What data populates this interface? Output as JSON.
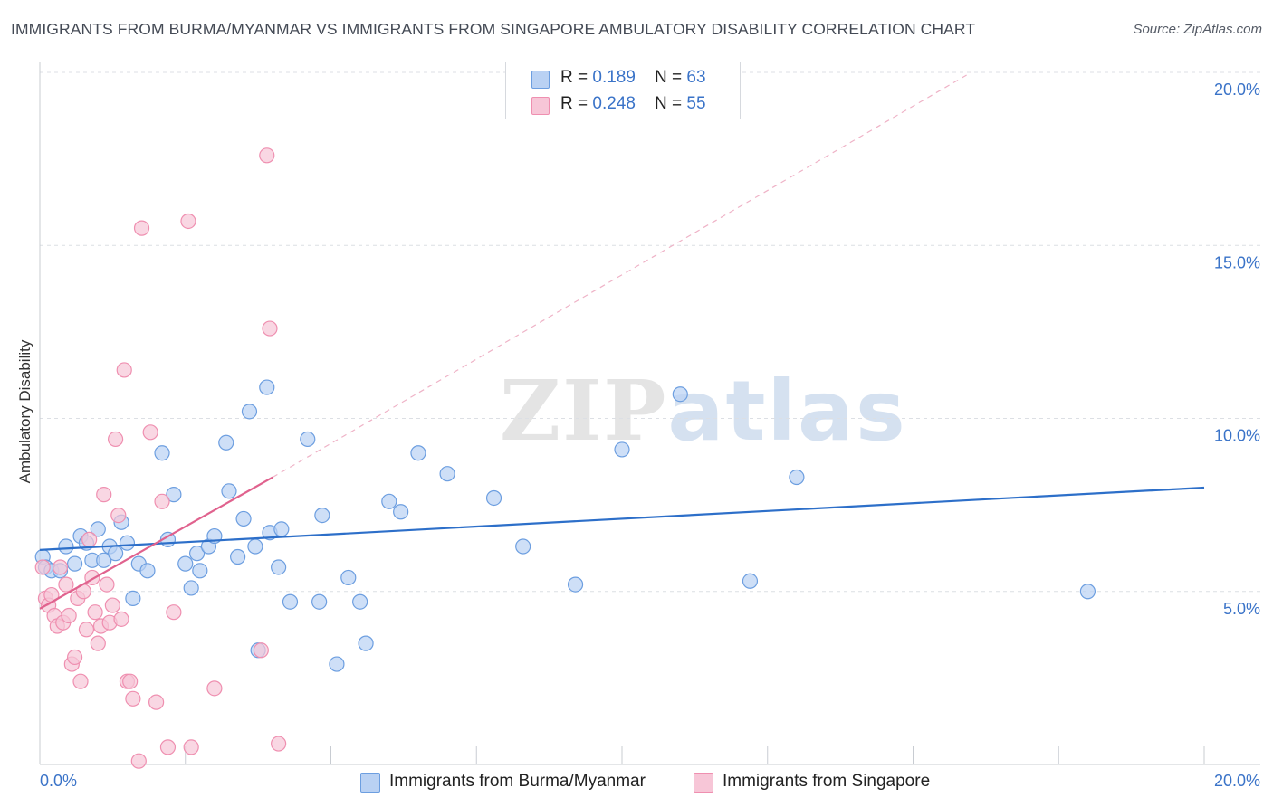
{
  "title": "IMMIGRANTS FROM BURMA/MYANMAR VS IMMIGRANTS FROM SINGAPORE AMBULATORY DISABILITY CORRELATION CHART",
  "source": "Source: ZipAtlas.com",
  "watermark": {
    "zip": "ZIP",
    "atlas": "atlas"
  },
  "legend": {
    "rows": [
      {
        "r_label": "R = ",
        "r_value": "0.189",
        "n_label": "N = ",
        "n_value": "63"
      },
      {
        "r_label": "R = ",
        "r_value": "0.248",
        "n_label": "N = ",
        "n_value": "55"
      }
    ]
  },
  "chart_data": {
    "type": "scatter",
    "ylabel": "Ambulatory Disability",
    "xlim": [
      0,
      20
    ],
    "ylim": [
      0,
      20
    ],
    "x_tick_labels": [
      {
        "value": 0,
        "label": "0.0%"
      },
      {
        "value": 20,
        "label": "20.0%"
      }
    ],
    "y_tick_labels": [
      {
        "value": 5,
        "label": "5.0%"
      },
      {
        "value": 10,
        "label": "10.0%"
      },
      {
        "value": 15,
        "label": "15.0%"
      },
      {
        "value": 20,
        "label": "20.0%"
      }
    ],
    "grid": true,
    "legend_placement": "bottom",
    "series": [
      {
        "name": "Immigrants from Burma/Myanmar",
        "color": "#6c9ee0",
        "fill": "#b9d1f3",
        "line_color": "#2d6fc9",
        "r": 0.189,
        "n": 63,
        "trend": {
          "x": [
            0,
            20
          ],
          "y": [
            6.2,
            8.0
          ]
        },
        "points": [
          [
            0.05,
            6.0
          ],
          [
            0.1,
            5.7
          ],
          [
            0.2,
            5.6
          ],
          [
            0.35,
            5.6
          ],
          [
            0.45,
            6.3
          ],
          [
            0.6,
            5.8
          ],
          [
            0.7,
            6.6
          ],
          [
            0.8,
            6.4
          ],
          [
            0.9,
            5.9
          ],
          [
            1.0,
            6.8
          ],
          [
            1.1,
            5.9
          ],
          [
            1.2,
            6.3
          ],
          [
            1.3,
            6.1
          ],
          [
            1.4,
            7.0
          ],
          [
            1.5,
            6.4
          ],
          [
            1.6,
            4.8
          ],
          [
            1.7,
            5.8
          ],
          [
            1.85,
            5.6
          ],
          [
            2.1,
            9.0
          ],
          [
            2.2,
            6.5
          ],
          [
            2.3,
            7.8
          ],
          [
            2.5,
            5.8
          ],
          [
            2.6,
            5.1
          ],
          [
            2.7,
            6.1
          ],
          [
            2.75,
            5.6
          ],
          [
            2.9,
            6.3
          ],
          [
            3.0,
            6.6
          ],
          [
            3.2,
            9.3
          ],
          [
            3.25,
            7.9
          ],
          [
            3.4,
            6.0
          ],
          [
            3.5,
            7.1
          ],
          [
            3.6,
            10.2
          ],
          [
            3.7,
            6.3
          ],
          [
            3.75,
            3.3
          ],
          [
            3.9,
            10.9
          ],
          [
            3.95,
            6.7
          ],
          [
            4.1,
            5.7
          ],
          [
            4.15,
            6.8
          ],
          [
            4.3,
            4.7
          ],
          [
            4.6,
            9.4
          ],
          [
            4.8,
            4.7
          ],
          [
            4.85,
            7.2
          ],
          [
            5.1,
            2.9
          ],
          [
            5.3,
            5.4
          ],
          [
            5.5,
            4.7
          ],
          [
            5.6,
            3.5
          ],
          [
            6.0,
            7.6
          ],
          [
            6.2,
            7.3
          ],
          [
            6.5,
            9.0
          ],
          [
            7.0,
            8.4
          ],
          [
            7.8,
            7.7
          ],
          [
            8.3,
            6.3
          ],
          [
            9.2,
            5.2
          ],
          [
            10.0,
            9.1
          ],
          [
            11.0,
            10.7
          ],
          [
            12.2,
            5.3
          ],
          [
            13.0,
            8.3
          ],
          [
            18.0,
            5.0
          ]
        ]
      },
      {
        "name": "Immigrants from Singapore",
        "color": "#ef8fb0",
        "fill": "#f7c6d7",
        "line_color": "#e0628e",
        "r": 0.248,
        "n": 55,
        "trend": {
          "x": [
            0,
            4.0
          ],
          "y": [
            4.5,
            8.3
          ]
        },
        "trend_ext": {
          "x": [
            4.0,
            16.0
          ],
          "y": [
            8.3,
            20.0
          ]
        },
        "points": [
          [
            0.05,
            5.7
          ],
          [
            0.1,
            4.8
          ],
          [
            0.15,
            4.6
          ],
          [
            0.2,
            4.9
          ],
          [
            0.25,
            4.3
          ],
          [
            0.3,
            4.0
          ],
          [
            0.35,
            5.7
          ],
          [
            0.4,
            4.1
          ],
          [
            0.45,
            5.2
          ],
          [
            0.5,
            4.3
          ],
          [
            0.55,
            2.9
          ],
          [
            0.6,
            3.1
          ],
          [
            0.65,
            4.8
          ],
          [
            0.7,
            2.4
          ],
          [
            0.75,
            5.0
          ],
          [
            0.8,
            3.9
          ],
          [
            0.85,
            6.5
          ],
          [
            0.9,
            5.4
          ],
          [
            0.95,
            4.4
          ],
          [
            1.0,
            3.5
          ],
          [
            1.05,
            4.0
          ],
          [
            1.1,
            7.8
          ],
          [
            1.15,
            5.2
          ],
          [
            1.2,
            4.1
          ],
          [
            1.25,
            4.6
          ],
          [
            1.3,
            9.4
          ],
          [
            1.35,
            7.2
          ],
          [
            1.4,
            4.2
          ],
          [
            1.45,
            11.4
          ],
          [
            1.5,
            2.4
          ],
          [
            1.55,
            2.4
          ],
          [
            1.6,
            1.9
          ],
          [
            1.7,
            0.1
          ],
          [
            1.75,
            15.5
          ],
          [
            1.9,
            9.6
          ],
          [
            2.0,
            1.8
          ],
          [
            2.1,
            7.6
          ],
          [
            2.2,
            0.5
          ],
          [
            2.3,
            4.4
          ],
          [
            2.55,
            15.7
          ],
          [
            2.6,
            0.5
          ],
          [
            3.0,
            2.2
          ],
          [
            3.8,
            3.3
          ],
          [
            3.9,
            17.6
          ],
          [
            3.95,
            12.6
          ],
          [
            4.1,
            0.6
          ]
        ]
      }
    ]
  }
}
